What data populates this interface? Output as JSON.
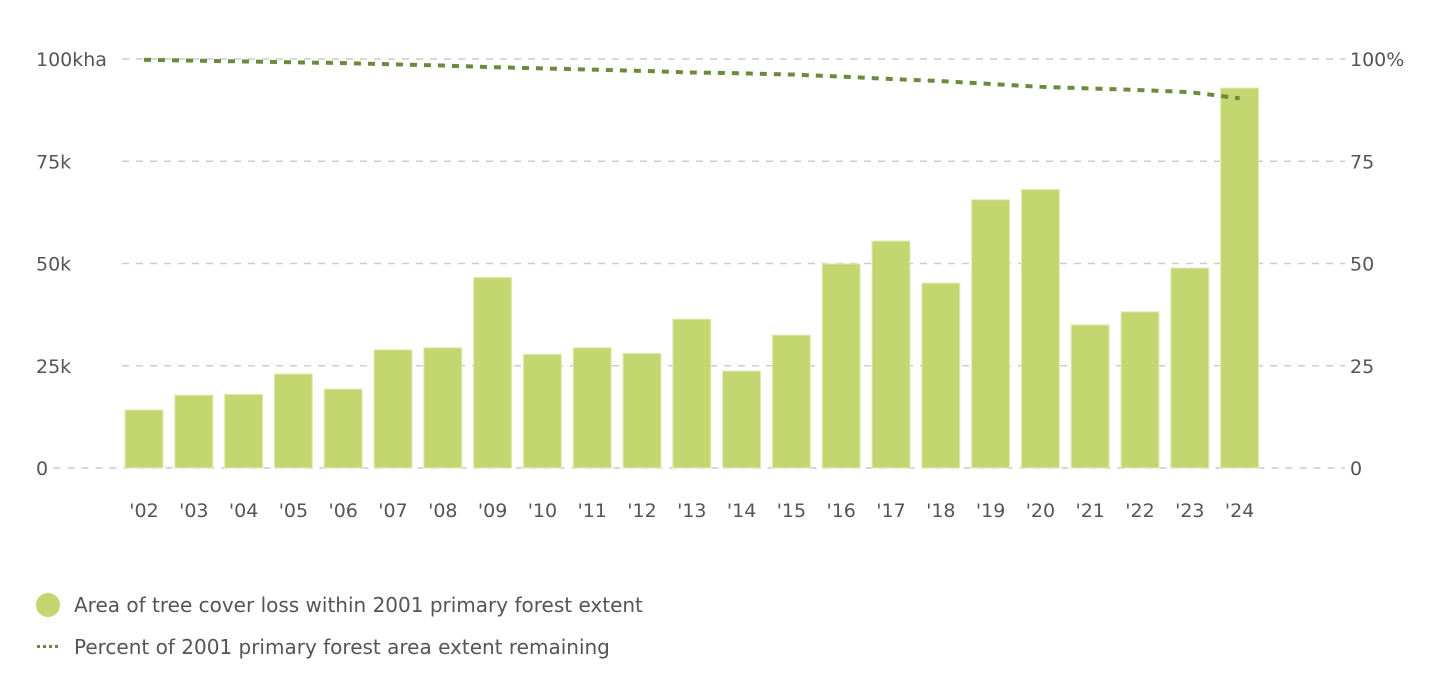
{
  "chart_data": {
    "type": "bar",
    "title": "",
    "xlabel": "",
    "ylabel": "",
    "categories": [
      "'02",
      "'03",
      "'04",
      "'05",
      "'06",
      "'07",
      "'08",
      "'09",
      "'10",
      "'11",
      "'12",
      "'13",
      "'14",
      "'15",
      "'16",
      "'17",
      "'18",
      "'19",
      "'20",
      "'21",
      "'22",
      "'23",
      "'24"
    ],
    "series": [
      {
        "name": "Area of tree cover loss within 2001 primary forest extent",
        "type": "bar",
        "axis": "left",
        "color": "#c4d670",
        "values": [
          14200,
          17800,
          18000,
          23000,
          19300,
          28900,
          29400,
          46600,
          27800,
          29400,
          28000,
          36400,
          23700,
          32500,
          49900,
          55500,
          45200,
          65600,
          68100,
          35000,
          38200,
          48900,
          92900
        ]
      },
      {
        "name": "Percent of 2001 primary forest area extent remaining",
        "type": "line",
        "style": "dotted",
        "axis": "right",
        "color": "#6b8a3a",
        "values": [
          99.8,
          99.6,
          99.4,
          99.2,
          99.0,
          98.7,
          98.4,
          98.0,
          97.7,
          97.4,
          97.1,
          96.7,
          96.5,
          96.2,
          95.7,
          95.1,
          94.6,
          93.9,
          93.2,
          92.8,
          92.4,
          91.9,
          90.4
        ]
      }
    ],
    "ylim": [
      0,
      100000
    ],
    "y2lim": [
      0,
      100
    ],
    "y_ticks": [
      {
        "value": 0,
        "label": "0"
      },
      {
        "value": 25000,
        "label": "25k"
      },
      {
        "value": 50000,
        "label": "50k"
      },
      {
        "value": 75000,
        "label": "75k"
      },
      {
        "value": 100000,
        "label": "100kha"
      }
    ],
    "y2_ticks": [
      {
        "value": 0,
        "label": "0"
      },
      {
        "value": 25,
        "label": "25"
      },
      {
        "value": 50,
        "label": "50"
      },
      {
        "value": 75,
        "label": "75"
      },
      {
        "value": 100,
        "label": "100%"
      }
    ],
    "grid": true,
    "legend_position": "bottom-left"
  },
  "legend": {
    "items": [
      {
        "label": "Area of tree cover loss within 2001 primary forest extent",
        "swatch": "dot",
        "color": "#c4d670"
      },
      {
        "label": "Percent of 2001 primary forest area extent remaining",
        "swatch": "dotted-line",
        "color": "#6b8a3a"
      }
    ]
  },
  "colors": {
    "grid": "#cccccc",
    "text": "#555555"
  }
}
